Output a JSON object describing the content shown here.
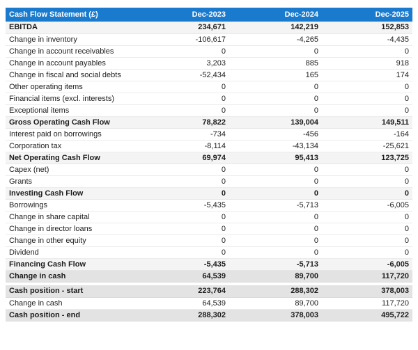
{
  "colors": {
    "header_bg": "#1a7bce",
    "header_text": "#ffffff",
    "subtotal_row_bg": "#f4f4f4",
    "total_row_bg": "#e3e3e3",
    "row_border": "#ececec",
    "text": "#1d1d1d"
  },
  "chart_data": {
    "type": "table",
    "title": "Cash Flow Statement (£)",
    "columns": [
      "Dec-2023",
      "Dec-2024",
      "Dec-2025"
    ],
    "rows": [
      {
        "label": "EBITDA",
        "values": [
          "234,671",
          "142,219",
          "152,853"
        ],
        "role": "subtotal"
      },
      {
        "label": "Change in inventory",
        "values": [
          "-106,617",
          "-4,265",
          "-4,435"
        ],
        "role": "line"
      },
      {
        "label": "Change in account receivables",
        "values": [
          "0",
          "0",
          "0"
        ],
        "role": "line"
      },
      {
        "label": "Change in account payables",
        "values": [
          "3,203",
          "885",
          "918"
        ],
        "role": "line"
      },
      {
        "label": "Change in fiscal and social debts",
        "values": [
          "-52,434",
          "165",
          "174"
        ],
        "role": "line"
      },
      {
        "label": "Other operating items",
        "values": [
          "0",
          "0",
          "0"
        ],
        "role": "line"
      },
      {
        "label": "Financial items (excl. interests)",
        "values": [
          "0",
          "0",
          "0"
        ],
        "role": "line"
      },
      {
        "label": "Exceptional items",
        "values": [
          "0",
          "0",
          "0"
        ],
        "role": "line"
      },
      {
        "label": "Gross Operating Cash Flow",
        "values": [
          "78,822",
          "139,004",
          "149,511"
        ],
        "role": "subtotal"
      },
      {
        "label": "Interest paid on borrowings",
        "values": [
          "-734",
          "-456",
          "-164"
        ],
        "role": "line"
      },
      {
        "label": "Corporation tax",
        "values": [
          "-8,114",
          "-43,134",
          "-25,621"
        ],
        "role": "line"
      },
      {
        "label": "Net Operating Cash Flow",
        "values": [
          "69,974",
          "95,413",
          "123,725"
        ],
        "role": "subtotal"
      },
      {
        "label": "Capex (net)",
        "values": [
          "0",
          "0",
          "0"
        ],
        "role": "line"
      },
      {
        "label": "Grants",
        "values": [
          "0",
          "0",
          "0"
        ],
        "role": "line"
      },
      {
        "label": "Investing Cash Flow",
        "values": [
          "0",
          "0",
          "0"
        ],
        "role": "subtotal"
      },
      {
        "label": "Borrowings",
        "values": [
          "-5,435",
          "-5,713",
          "-6,005"
        ],
        "role": "line"
      },
      {
        "label": "Change in share capital",
        "values": [
          "0",
          "0",
          "0"
        ],
        "role": "line"
      },
      {
        "label": "Change in director loans",
        "values": [
          "0",
          "0",
          "0"
        ],
        "role": "line"
      },
      {
        "label": "Change in other equity",
        "values": [
          "0",
          "0",
          "0"
        ],
        "role": "line"
      },
      {
        "label": "Dividend",
        "values": [
          "0",
          "0",
          "0"
        ],
        "role": "line"
      },
      {
        "label": "Financing Cash Flow",
        "values": [
          "-5,435",
          "-5,713",
          "-6,005"
        ],
        "role": "subtotal"
      },
      {
        "label": "Change in cash",
        "values": [
          "64,539",
          "89,700",
          "117,720"
        ],
        "role": "total"
      },
      {
        "label": "Cash position - start",
        "values": [
          "223,764",
          "288,302",
          "378,003"
        ],
        "role": "total",
        "separator_before": true
      },
      {
        "label": "Change in cash",
        "values": [
          "64,539",
          "89,700",
          "117,720"
        ],
        "role": "line"
      },
      {
        "label": "Cash position - end",
        "values": [
          "288,302",
          "378,003",
          "495,722"
        ],
        "role": "total"
      }
    ]
  }
}
